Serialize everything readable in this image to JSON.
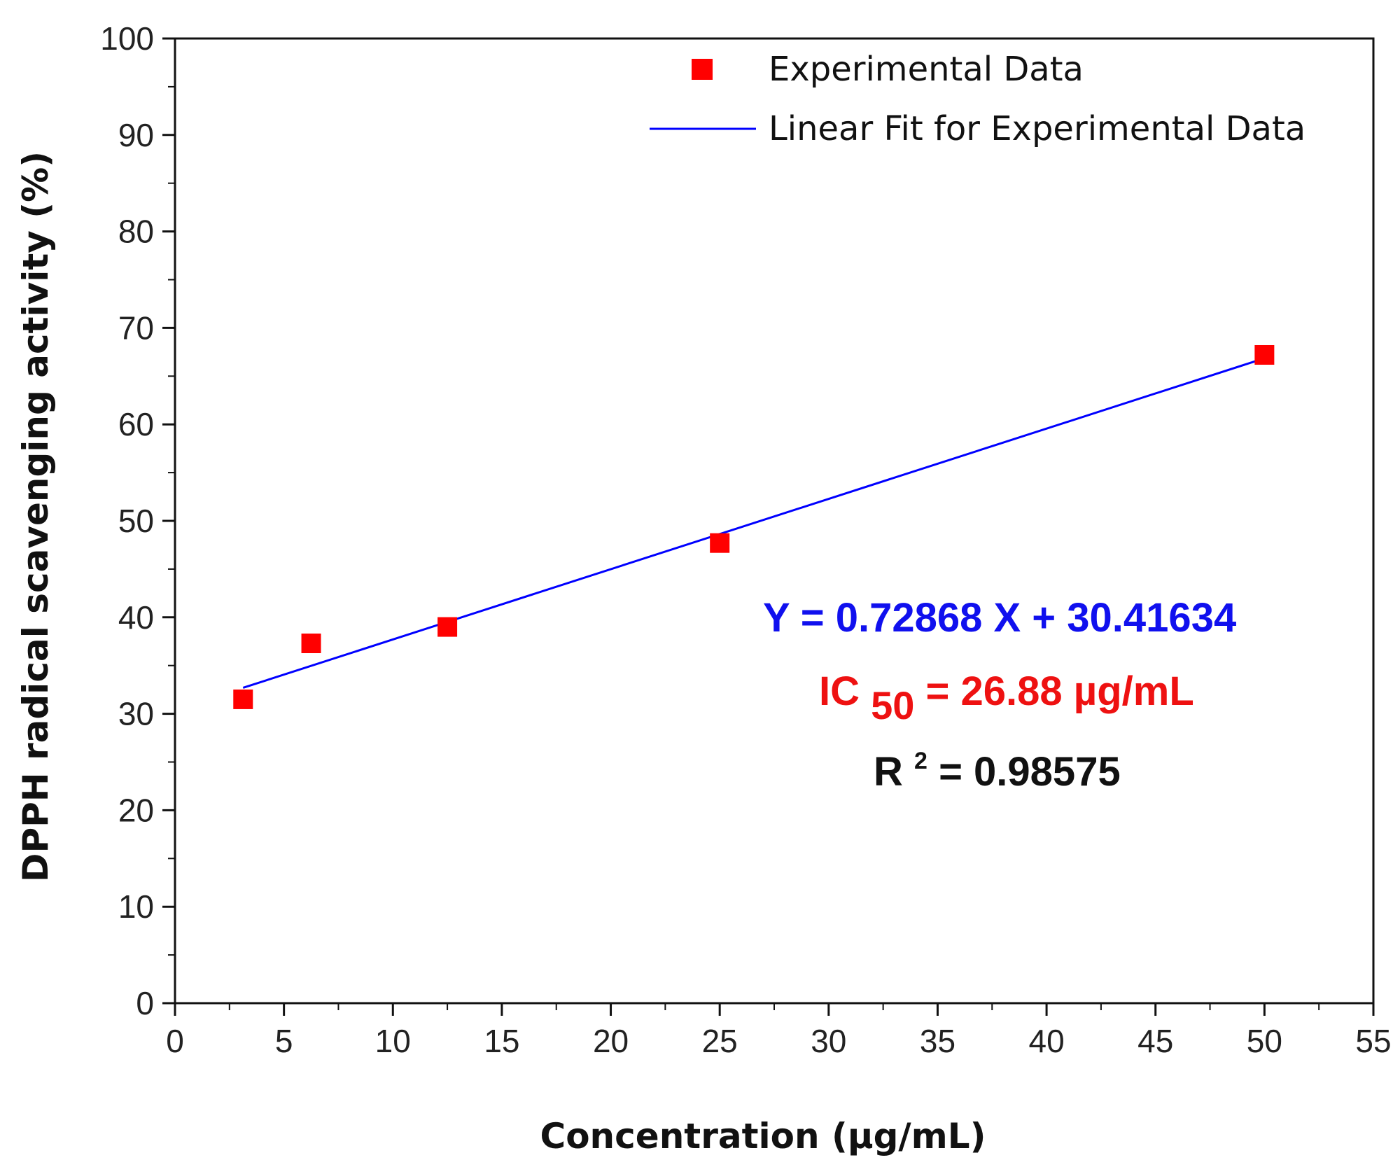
{
  "chart_data": {
    "type": "scatter",
    "xlabel": "Concentration (µg/mL)",
    "ylabel": "DPPH radical scavenging activity (%)",
    "xlim": [
      0,
      55
    ],
    "ylim": [
      0,
      100
    ],
    "xticks": [
      "0",
      "5",
      "10",
      "15",
      "20",
      "25",
      "30",
      "35",
      "40",
      "45",
      "50",
      "55"
    ],
    "yticks": [
      "0",
      "10",
      "20",
      "30",
      "40",
      "50",
      "60",
      "70",
      "80",
      "90",
      "100"
    ],
    "series": [
      {
        "name": "Experimental Data",
        "kind": "scatter",
        "marker": "square",
        "color": "#ff0000",
        "x": [
          3.125,
          6.25,
          12.5,
          25,
          50
        ],
        "y": [
          31.5,
          37.3,
          39.0,
          47.7,
          67.2
        ]
      },
      {
        "name": "Linear Fit for Experimental Data",
        "kind": "line",
        "color": "#0000ff",
        "slope": 0.72868,
        "intercept": 30.41634,
        "x_range": [
          3.125,
          50
        ]
      }
    ],
    "legend_position": "top-right",
    "grid": false,
    "annotations": {
      "equation": "Y = 0.72868 X + 30.41634",
      "ic50_prefix": "IC",
      "ic50_sub": "50",
      "ic50_value": "= 26.88 µg/mL",
      "r2_prefix": "R",
      "r2_sup": "2",
      "r2_value": " = 0.98575",
      "equation_color": "#1010ee",
      "ic50_color": "#ee1111",
      "r2_color": "#111111"
    }
  }
}
